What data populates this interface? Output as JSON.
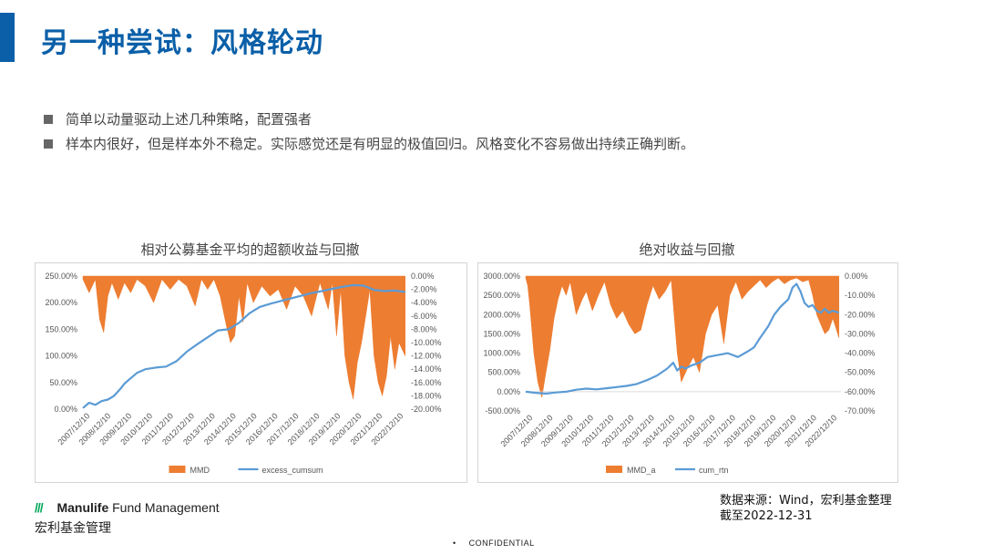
{
  "header": {
    "title": "另一种尝试：风格轮动"
  },
  "bullets": [
    "简单以动量驱动上述几种策略，配置强者",
    "样本内很好，但是样本外不稳定。实际感觉还是有明显的极值回归。风格变化不容易做出持续正确判断。"
  ],
  "colors": {
    "accent": "#0a5fa8",
    "drawdown": "#ed7d31",
    "line": "#5b9bd5",
    "logo_green": "#00a758"
  },
  "footer": {
    "logo_brand": "Manulife",
    "logo_rest": " Fund Management",
    "logo_cn": "宏利基金管理",
    "source_line1": "数据来源：Wind，宏利基金整理",
    "source_line2": "截至2022-12-31",
    "confidential": "CONFIDENTIAL"
  },
  "chart_data": [
    {
      "type": "area+line",
      "title": "相对公募基金平均的超额收益与回撤",
      "x_ticks": [
        "2007/12/10",
        "2008/12/10",
        "2009/12/10",
        "2010/12/10",
        "2011/12/10",
        "2012/12/10",
        "2013/12/10",
        "2014/12/10",
        "2015/12/10",
        "2016/12/10",
        "2017/12/10",
        "2018/12/10",
        "2019/12/10",
        "2020/12/10",
        "2021/12/10",
        "2022/12/10"
      ],
      "y_left": {
        "ticks": [
          "0.00%",
          "50.00%",
          "100.00%",
          "150.00%",
          "200.00%",
          "250.00%"
        ],
        "min": 0,
        "max": 250
      },
      "y_right": {
        "ticks": [
          "0.00%",
          "-2.00%",
          "-4.00%",
          "-6.00%",
          "-8.00%",
          "-10.00%",
          "-12.00%",
          "-14.00%",
          "-16.00%",
          "-18.00%",
          "-20.00%"
        ],
        "min": -20,
        "max": 0
      },
      "legend": [
        "MMD",
        "excess_cumsum"
      ],
      "series": [
        {
          "name": "excess_cumsum",
          "axis": "left",
          "x": [
            0,
            0.3,
            0.6,
            0.9,
            1.2,
            1.5,
            1.8,
            2.0,
            2.3,
            2.6,
            3.0,
            3.5,
            4.0,
            4.5,
            5.0,
            5.5,
            6.0,
            6.5,
            7.0,
            7.5,
            8.0,
            8.5,
            9.0,
            9.5,
            10.0,
            10.5,
            11.0,
            11.5,
            12.0,
            12.5,
            13.0,
            13.5,
            14.0,
            14.5,
            15.0,
            15.5
          ],
          "values": [
            2,
            12,
            8,
            15,
            18,
            25,
            38,
            48,
            58,
            68,
            75,
            78,
            80,
            90,
            108,
            122,
            135,
            148,
            150,
            162,
            180,
            192,
            198,
            203,
            208,
            213,
            218,
            222,
            226,
            230,
            233,
            232,
            224,
            222,
            223,
            220
          ]
        },
        {
          "name": "MMD",
          "axis": "right",
          "x": [
            0,
            0.3,
            0.6,
            0.8,
            1.0,
            1.2,
            1.4,
            1.7,
            2.0,
            2.3,
            2.6,
            3.0,
            3.4,
            3.8,
            4.2,
            4.6,
            5.0,
            5.4,
            5.7,
            6.0,
            6.3,
            6.6,
            6.9,
            7.1,
            7.3,
            7.5,
            7.7,
            7.9,
            8.2,
            8.6,
            9.0,
            9.4,
            9.8,
            10.2,
            10.6,
            11.0,
            11.4,
            11.8,
            12.0,
            12.2,
            12.4,
            12.6,
            12.8,
            13.0,
            13.2,
            13.4,
            13.6,
            13.8,
            14.0,
            14.2,
            14.4,
            14.6,
            14.8,
            15.0,
            15.2,
            15.5
          ],
          "values": [
            -0.5,
            -2.5,
            -0.5,
            -6.5,
            -8.5,
            -3.0,
            -1.0,
            -3.5,
            -1.0,
            -2.5,
            -0.5,
            -1.5,
            -4.0,
            -0.5,
            -2.0,
            -0.5,
            -1.5,
            -4.5,
            -0.5,
            -2.0,
            -0.5,
            -3.0,
            -7.5,
            -10.0,
            -9.0,
            -3.0,
            -7.0,
            -1.0,
            -4.0,
            -1.5,
            -3.0,
            -2.0,
            -5.0,
            -1.5,
            -3.0,
            -6.0,
            -1.0,
            -5.0,
            -1.0,
            -9.0,
            -2.0,
            -12.0,
            -16.0,
            -18.5,
            -13.0,
            -10.0,
            -6.0,
            -2.0,
            -12.0,
            -16.0,
            -18.0,
            -15.0,
            -9.0,
            -14.0,
            -10.0,
            -12.0
          ]
        }
      ]
    },
    {
      "type": "area+line",
      "title": "绝对收益与回撤",
      "x_ticks": [
        "2007/12/10",
        "2008/12/10",
        "2009/12/10",
        "2010/12/10",
        "2011/12/10",
        "2012/12/10",
        "2013/12/10",
        "2014/12/10",
        "2015/12/10",
        "2016/12/10",
        "2017/12/10",
        "2018/12/10",
        "2019/12/10",
        "2020/12/10",
        "2021/12/10",
        "2022/12/10"
      ],
      "y_left": {
        "ticks": [
          "-500.00%",
          "0.00%",
          "500.00%",
          "1000.00%",
          "1500.00%",
          "2000.00%",
          "2500.00%",
          "3000.00%"
        ],
        "min": -500,
        "max": 3000
      },
      "y_right": {
        "ticks": [
          "0.00%",
          "-10.00%",
          "-20.00%",
          "-30.00%",
          "-40.00%",
          "-50.00%",
          "-60.00%",
          "-70.00%"
        ],
        "min": -70,
        "max": 0
      },
      "legend": [
        "MMD_a",
        "cum_rtn"
      ],
      "series": [
        {
          "name": "cum_rtn",
          "axis": "left",
          "x": [
            0,
            0.5,
            1.0,
            1.5,
            2.0,
            2.5,
            3.0,
            3.5,
            4.0,
            4.5,
            5.0,
            5.5,
            6.0,
            6.5,
            7.0,
            7.3,
            7.5,
            7.7,
            7.9,
            8.2,
            8.6,
            9.0,
            9.5,
            10.0,
            10.5,
            11.0,
            11.3,
            11.6,
            12.0,
            12.3,
            12.6,
            13.0,
            13.2,
            13.4,
            13.6,
            13.8,
            14.0,
            14.2,
            14.4,
            14.6,
            14.8,
            15.0,
            15.2,
            15.5
          ],
          "values": [
            0,
            -30,
            -50,
            -20,
            0,
            50,
            80,
            60,
            90,
            120,
            150,
            200,
            300,
            420,
            600,
            750,
            550,
            650,
            600,
            680,
            750,
            900,
            950,
            1000,
            900,
            1050,
            1150,
            1400,
            1700,
            2000,
            2200,
            2400,
            2700,
            2800,
            2600,
            2300,
            2200,
            2250,
            2100,
            2050,
            2150,
            2050,
            2100,
            2050
          ]
        },
        {
          "name": "MMD_a",
          "axis": "right",
          "x": [
            0,
            0.1,
            0.2,
            0.4,
            0.6,
            0.8,
            1.0,
            1.2,
            1.4,
            1.6,
            1.8,
            2.0,
            2.2,
            2.5,
            2.8,
            3.0,
            3.3,
            3.6,
            3.9,
            4.2,
            4.5,
            4.8,
            5.1,
            5.4,
            5.7,
            6.0,
            6.3,
            6.6,
            6.9,
            7.2,
            7.5,
            7.7,
            8.0,
            8.3,
            8.6,
            8.9,
            9.2,
            9.5,
            9.8,
            10.1,
            10.4,
            10.7,
            11.0,
            11.3,
            11.6,
            11.9,
            12.2,
            12.5,
            12.8,
            13.1,
            13.4,
            13.7,
            14.0,
            14.2,
            14.4,
            14.6,
            14.8,
            15.0,
            15.2,
            15.5
          ],
          "values": [
            -1,
            -5,
            -15,
            -40,
            -55,
            -63,
            -50,
            -38,
            -22,
            -12,
            -5,
            -10,
            -3,
            -20,
            -12,
            -8,
            -18,
            -10,
            -3,
            -15,
            -22,
            -18,
            -25,
            -30,
            -28,
            -15,
            -5,
            -12,
            -8,
            -2,
            -40,
            -55,
            -48,
            -42,
            -50,
            -30,
            -20,
            -15,
            -35,
            -10,
            -3,
            -12,
            -8,
            -5,
            -2,
            -6,
            -3,
            -1,
            -4,
            -2,
            -1,
            -3,
            -2,
            -10,
            -20,
            -25,
            -30,
            -28,
            -22,
            -32
          ]
        }
      ]
    }
  ]
}
